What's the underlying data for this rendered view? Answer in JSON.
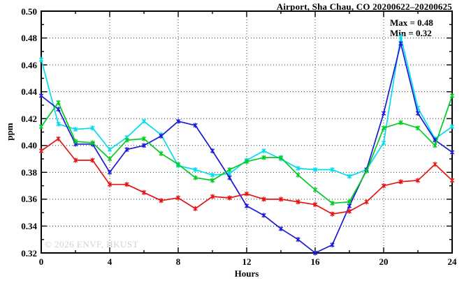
{
  "title": "Airport, Sha Chau, CO 20200622–20200625",
  "annotation": {
    "max_label": "Max = 0.48",
    "min_label": "Min = 0.32"
  },
  "watermark": "© 2026 ENVF, HKUST",
  "colors": {
    "series_cyan": "#00DDEE",
    "series_blue": "#1A1AD6",
    "series_green": "#00CC22",
    "series_red": "#E61414",
    "grid": "#3a3a3a",
    "axis": "#000000",
    "watermark": "#d2d2d2"
  },
  "chart_data": {
    "type": "line",
    "title": "Airport, Sha Chau, CO 20200622–20200625",
    "xlabel": "Hours",
    "ylabel": "ppm",
    "xlim": [
      0,
      24
    ],
    "ylim": [
      0.32,
      0.5
    ],
    "x_major_ticks": [
      0,
      4,
      8,
      12,
      16,
      20,
      24
    ],
    "x_minor_step": 2,
    "y_major_step": 0.02,
    "y_minor_step": 0.01,
    "grid": "dotted",
    "legend_position": "none",
    "x": [
      0,
      1,
      2,
      3,
      4,
      5,
      6,
      7,
      8,
      9,
      10,
      11,
      12,
      13,
      14,
      15,
      16,
      17,
      18,
      19,
      20,
      21,
      22,
      23,
      24
    ],
    "series": [
      {
        "name": "cyan-line",
        "color": "#00DDEE",
        "values": [
          0.464,
          0.416,
          0.412,
          0.413,
          0.397,
          0.406,
          0.418,
          0.408,
          0.385,
          0.382,
          0.378,
          0.379,
          0.389,
          0.396,
          0.39,
          0.383,
          0.382,
          0.382,
          0.377,
          0.382,
          0.402,
          0.481,
          0.428,
          0.405,
          0.414
        ]
      },
      {
        "name": "blue-line",
        "color": "#1A1AD6",
        "values": [
          0.437,
          0.427,
          0.401,
          0.401,
          0.38,
          0.397,
          0.4,
          0.407,
          0.418,
          0.415,
          0.396,
          0.376,
          0.355,
          0.348,
          0.338,
          0.33,
          0.32,
          0.326,
          0.355,
          0.382,
          0.424,
          0.476,
          0.424,
          0.404,
          0.395
        ]
      },
      {
        "name": "green-line",
        "color": "#00CC22",
        "values": [
          0.414,
          0.432,
          0.403,
          0.402,
          0.39,
          0.404,
          0.405,
          0.394,
          0.386,
          0.376,
          0.374,
          0.382,
          0.388,
          0.391,
          0.391,
          0.378,
          0.367,
          0.357,
          0.358,
          0.381,
          0.413,
          0.417,
          0.413,
          0.4,
          0.437
        ]
      },
      {
        "name": "red-line",
        "color": "#E61414",
        "values": [
          0.396,
          0.405,
          0.389,
          0.389,
          0.371,
          0.371,
          0.365,
          0.359,
          0.361,
          0.353,
          0.362,
          0.361,
          0.364,
          0.36,
          0.36,
          0.358,
          0.356,
          0.349,
          0.351,
          0.358,
          0.37,
          0.373,
          0.374,
          0.386,
          0.374
        ]
      }
    ],
    "stats": {
      "max": 0.48,
      "min": 0.32
    }
  }
}
